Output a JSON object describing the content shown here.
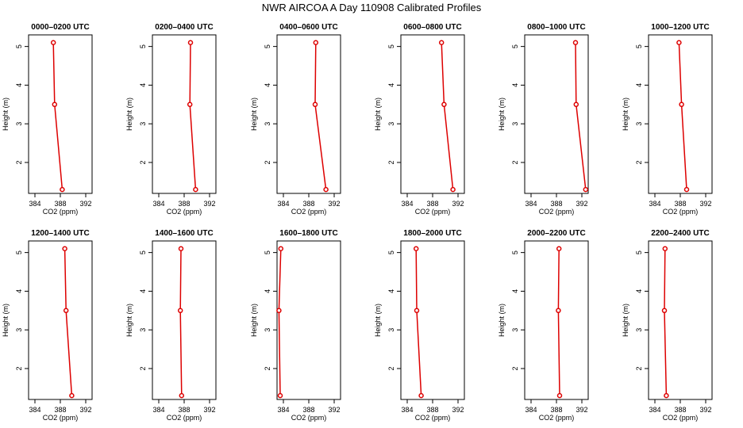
{
  "figure_title": "NWR AIRCOA A  Day 110908  Calibrated Profiles",
  "colors": {
    "series": "#dd0000",
    "axis": "#000000"
  },
  "chart_data": [
    {
      "type": "line",
      "title": "0000–0200 UTC",
      "xlabel": "CO2 (ppm)",
      "ylabel": "Height (m)",
      "xlim": [
        383,
        393
      ],
      "ylim": [
        1.2,
        5.3
      ],
      "xticks": [
        384,
        388,
        392
      ],
      "yticks": [
        2,
        3,
        4,
        5
      ],
      "grid": false,
      "x": [
        386.9,
        387.1,
        388.3
      ],
      "y": [
        5.1,
        3.5,
        1.3
      ]
    },
    {
      "type": "line",
      "title": "0200–0400 UTC",
      "xlabel": "CO2 (ppm)",
      "ylabel": "Height (m)",
      "xlim": [
        383,
        393
      ],
      "ylim": [
        1.2,
        5.3
      ],
      "xticks": [
        384,
        388,
        392
      ],
      "yticks": [
        2,
        3,
        4,
        5
      ],
      "grid": false,
      "x": [
        389.0,
        388.9,
        389.8
      ],
      "y": [
        5.1,
        3.5,
        1.3
      ]
    },
    {
      "type": "line",
      "title": "0400–0600 UTC",
      "xlabel": "CO2 (ppm)",
      "ylabel": "Height (m)",
      "xlim": [
        383,
        393
      ],
      "ylim": [
        1.2,
        5.3
      ],
      "xticks": [
        384,
        388,
        392
      ],
      "yticks": [
        2,
        3,
        4,
        5
      ],
      "grid": false,
      "x": [
        389.1,
        389.0,
        390.7
      ],
      "y": [
        5.1,
        3.5,
        1.3
      ]
    },
    {
      "type": "line",
      "title": "0600–0800 UTC",
      "xlabel": "CO2 (ppm)",
      "ylabel": "Height (m)",
      "xlim": [
        383,
        393
      ],
      "ylim": [
        1.2,
        5.3
      ],
      "xticks": [
        384,
        388,
        392
      ],
      "yticks": [
        2,
        3,
        4,
        5
      ],
      "grid": false,
      "x": [
        389.4,
        389.8,
        391.2
      ],
      "y": [
        5.1,
        3.5,
        1.3
      ]
    },
    {
      "type": "line",
      "title": "0800–1000 UTC",
      "xlabel": "CO2 (ppm)",
      "ylabel": "Height (m)",
      "xlim": [
        383,
        393
      ],
      "ylim": [
        1.2,
        5.3
      ],
      "xticks": [
        384,
        388,
        392
      ],
      "yticks": [
        2,
        3,
        4,
        5
      ],
      "grid": false,
      "x": [
        391.0,
        391.1,
        392.6
      ],
      "y": [
        5.1,
        3.5,
        1.3
      ]
    },
    {
      "type": "line",
      "title": "1000–1200 UTC",
      "xlabel": "CO2 (ppm)",
      "ylabel": "Height (m)",
      "xlim": [
        383,
        393
      ],
      "ylim": [
        1.2,
        5.3
      ],
      "xticks": [
        384,
        388,
        392
      ],
      "yticks": [
        2,
        3,
        4,
        5
      ],
      "grid": false,
      "x": [
        387.8,
        388.2,
        389.0
      ],
      "y": [
        5.1,
        3.5,
        1.3
      ]
    },
    {
      "type": "line",
      "title": "1200–1400 UTC",
      "xlabel": "CO2 (ppm)",
      "ylabel": "Height (m)",
      "xlim": [
        383,
        393
      ],
      "ylim": [
        1.2,
        5.3
      ],
      "xticks": [
        384,
        388,
        392
      ],
      "yticks": [
        2,
        3,
        4,
        5
      ],
      "grid": false,
      "x": [
        388.7,
        388.9,
        389.8
      ],
      "y": [
        5.1,
        3.5,
        1.3
      ]
    },
    {
      "type": "line",
      "title": "1400–1600 UTC",
      "xlabel": "CO2 (ppm)",
      "ylabel": "Height (m)",
      "xlim": [
        383,
        393
      ],
      "ylim": [
        1.2,
        5.3
      ],
      "xticks": [
        384,
        388,
        392
      ],
      "yticks": [
        2,
        3,
        4,
        5
      ],
      "grid": false,
      "x": [
        387.5,
        387.4,
        387.6
      ],
      "y": [
        5.1,
        3.5,
        1.3
      ]
    },
    {
      "type": "line",
      "title": "1600–1800 UTC",
      "xlabel": "CO2 (ppm)",
      "ylabel": "Height (m)",
      "xlim": [
        383,
        393
      ],
      "ylim": [
        1.2,
        5.3
      ],
      "xticks": [
        384,
        388,
        392
      ],
      "yticks": [
        2,
        3,
        4,
        5
      ],
      "grid": false,
      "x": [
        383.6,
        383.3,
        383.5
      ],
      "y": [
        5.1,
        3.5,
        1.3
      ]
    },
    {
      "type": "line",
      "title": "1800–2000 UTC",
      "xlabel": "CO2 (ppm)",
      "ylabel": "Height (m)",
      "xlim": [
        383,
        393
      ],
      "ylim": [
        1.2,
        5.3
      ],
      "xticks": [
        384,
        388,
        392
      ],
      "yticks": [
        2,
        3,
        4,
        5
      ],
      "grid": false,
      "x": [
        385.4,
        385.5,
        386.2
      ],
      "y": [
        5.1,
        3.5,
        1.3
      ]
    },
    {
      "type": "line",
      "title": "2000–2200 UTC",
      "xlabel": "CO2 (ppm)",
      "ylabel": "Height (m)",
      "xlim": [
        383,
        393
      ],
      "ylim": [
        1.2,
        5.3
      ],
      "xticks": [
        384,
        388,
        392
      ],
      "yticks": [
        2,
        3,
        4,
        5
      ],
      "grid": false,
      "x": [
        388.4,
        388.3,
        388.5
      ],
      "y": [
        5.1,
        3.5,
        1.3
      ]
    },
    {
      "type": "line",
      "title": "2200–2400 UTC",
      "xlabel": "CO2 (ppm)",
      "ylabel": "Height (m)",
      "xlim": [
        383,
        393
      ],
      "ylim": [
        1.2,
        5.3
      ],
      "xticks": [
        384,
        388,
        392
      ],
      "yticks": [
        2,
        3,
        4,
        5
      ],
      "grid": false,
      "x": [
        385.6,
        385.5,
        385.8
      ],
      "y": [
        5.1,
        3.5,
        1.3
      ]
    }
  ]
}
